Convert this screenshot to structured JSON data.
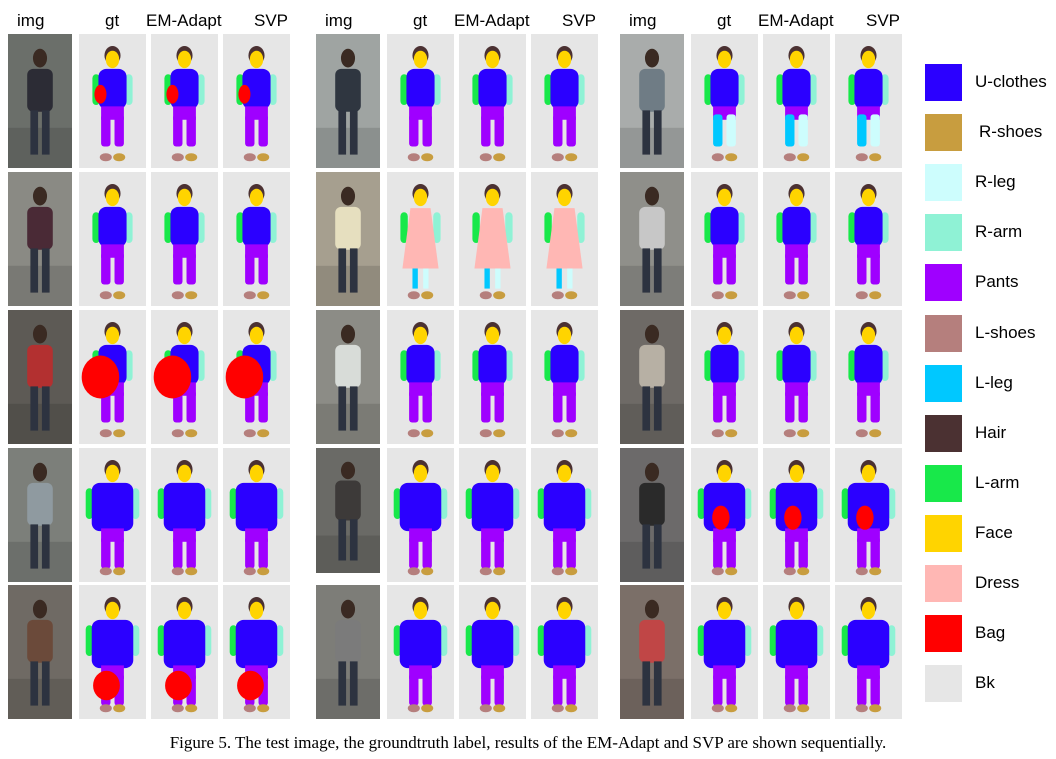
{
  "headers": [
    "img",
    "gt",
    "EM-Adapt",
    "SVP"
  ],
  "legend": [
    {
      "label": "U-clothes",
      "color": "#2b00ff"
    },
    {
      "label": "R-shoes",
      "color": "#c89d3f"
    },
    {
      "label": "R-leg",
      "color": "#cdfdfd"
    },
    {
      "label": "R-arm",
      "color": "#8ff2d5"
    },
    {
      "label": "Pants",
      "color": "#9f00ff"
    },
    {
      "label": "L-shoes",
      "color": "#b57f7d"
    },
    {
      "label": "L-leg",
      "color": "#00c8ff"
    },
    {
      "label": "Hair",
      "color": "#4b3132"
    },
    {
      "label": "L-arm",
      "color": "#18e84a"
    },
    {
      "label": "Face",
      "color": "#ffd400"
    },
    {
      "label": "Dress",
      "color": "#ffb7b4"
    },
    {
      "label": "Bag",
      "color": "#ff0000"
    },
    {
      "label": "Bk",
      "color": "#e6e6e6"
    }
  ],
  "caption": "Figure 5. The test image, the groundtruth label, results of the EM-Adapt and SVP are shown sequentially."
}
